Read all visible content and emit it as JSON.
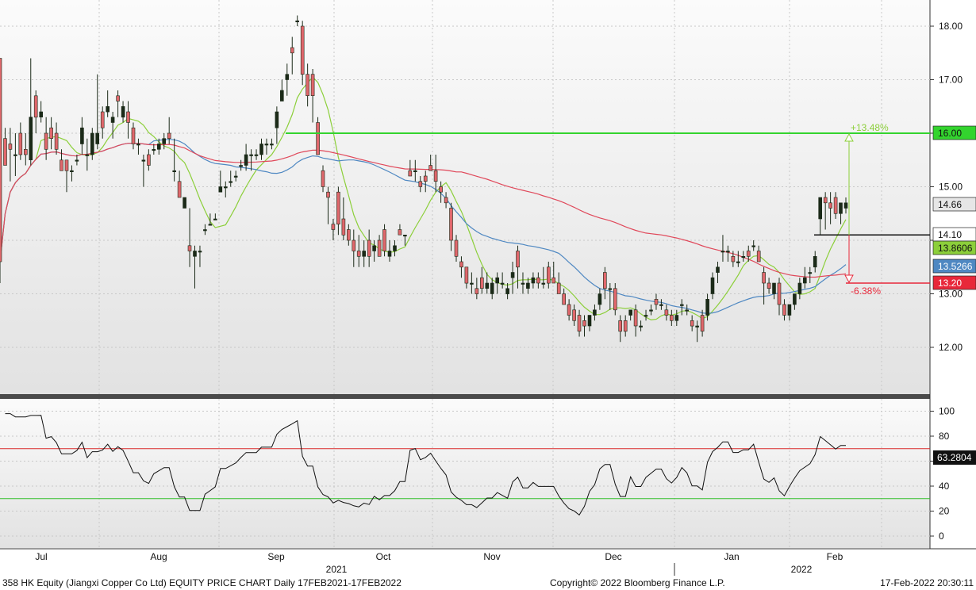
{
  "colors": {
    "up": "#1b2a18",
    "down": "#e0676c",
    "ma_short": "#8ccf3a",
    "ma_mid": "#4f88c2",
    "ma_long": "#e0485a",
    "target_line": "#33d42e",
    "stop_line": "#e8283a",
    "current_line": "#111111",
    "rsi": "#111111",
    "rsi_upper": "#d92a2a",
    "rsi_lower": "#33c02a",
    "grid": "#c8c8c8",
    "panel_bg_top": "#f7f7f7",
    "panel_bg_bottom": "#dcdcdc"
  },
  "footer": {
    "left": "358 HK Equity (Jiangxi Copper Co Ltd) EQUITY PRICE CHART  Daily 17FEB2021-17FEB2022",
    "center": "Copyright© 2022 Bloomberg Finance L.P.",
    "right": "17-Feb-2022 20:30:11"
  },
  "chart_data": [
    {
      "type": "candlestick",
      "title": "",
      "ylim": [
        11.0,
        18.5
      ],
      "yticks": [
        "18.00",
        "17.00",
        "16.00",
        "15.00",
        "14.00",
        "13.00",
        "12.00"
      ],
      "x_months": [
        "Jul",
        "Aug",
        "Sep",
        "Oct",
        "Nov",
        "Dec",
        "Jan",
        "Feb"
      ],
      "x_years": [
        "2021",
        "2022"
      ],
      "grid": true,
      "ohlc": [
        [
          17.4,
          17.4,
          13.2,
          13.6
        ],
        [
          15.9,
          16.1,
          15.4,
          15.4
        ],
        [
          15.8,
          16.1,
          15.1,
          15.7
        ],
        [
          15.6,
          16.0,
          15.2,
          15.6
        ],
        [
          16.0,
          16.2,
          15.5,
          15.6
        ],
        [
          15.7,
          16.0,
          15.4,
          15.6
        ],
        [
          15.5,
          17.4,
          15.4,
          16.3
        ],
        [
          16.7,
          16.8,
          16.0,
          16.3
        ],
        [
          16.3,
          16.6,
          16.2,
          16.4
        ],
        [
          16.0,
          16.3,
          15.5,
          15.7
        ],
        [
          16.1,
          16.3,
          15.7,
          15.9
        ],
        [
          16.0,
          16.2,
          15.6,
          15.7
        ],
        [
          15.5,
          15.7,
          15.3,
          15.3
        ],
        [
          15.5,
          15.5,
          14.9,
          15.3
        ],
        [
          15.3,
          15.4,
          15.1,
          15.3
        ],
        [
          15.5,
          15.6,
          15.4,
          15.5
        ],
        [
          15.8,
          16.3,
          15.6,
          16.1
        ],
        [
          15.6,
          15.9,
          15.3,
          15.6
        ],
        [
          15.6,
          16.1,
          15.5,
          16.0
        ],
        [
          15.8,
          17.1,
          15.7,
          16.0
        ],
        [
          16.4,
          16.5,
          15.9,
          16.1
        ],
        [
          16.4,
          16.8,
          16.3,
          16.5
        ],
        [
          16.2,
          16.4,
          15.9,
          16.3
        ],
        [
          16.7,
          16.8,
          16.3,
          16.6
        ],
        [
          16.3,
          16.6,
          16.2,
          16.5
        ],
        [
          16.4,
          16.6,
          15.9,
          16.2
        ],
        [
          16.1,
          16.2,
          15.7,
          15.8
        ],
        [
          15.8,
          15.9,
          15.6,
          15.8
        ],
        [
          15.5,
          15.6,
          15.0,
          15.5
        ],
        [
          15.6,
          15.7,
          15.3,
          15.4
        ],
        [
          15.7,
          15.8,
          15.6,
          15.7
        ],
        [
          15.7,
          15.9,
          15.6,
          15.8
        ],
        [
          15.8,
          16.0,
          15.7,
          15.9
        ],
        [
          16.0,
          16.3,
          15.8,
          15.9
        ],
        [
          15.3,
          15.9,
          15.1,
          15.3
        ],
        [
          15.1,
          15.3,
          14.8,
          14.8
        ],
        [
          14.6,
          14.8,
          14.6,
          14.8
        ],
        [
          13.9,
          14.6,
          13.5,
          13.8
        ],
        [
          13.7,
          13.9,
          13.1,
          13.8
        ],
        [
          13.8,
          13.9,
          13.5,
          13.8
        ],
        [
          14.2,
          14.3,
          14.1,
          14.2
        ],
        [
          14.3,
          14.5,
          14.3,
          14.3
        ],
        [
          14.4,
          14.5,
          14.4,
          14.4
        ],
        [
          14.9,
          15.3,
          14.9,
          15.0
        ],
        [
          15.0,
          15.1,
          14.8,
          15.0
        ],
        [
          15.1,
          15.3,
          15.0,
          15.1
        ],
        [
          15.2,
          15.3,
          15.1,
          15.2
        ],
        [
          15.4,
          15.5,
          15.3,
          15.4
        ],
        [
          15.4,
          15.8,
          15.3,
          15.6
        ],
        [
          15.6,
          15.7,
          15.3,
          15.6
        ],
        [
          15.6,
          15.7,
          15.5,
          15.6
        ],
        [
          15.6,
          15.9,
          15.5,
          15.8
        ],
        [
          15.8,
          15.9,
          15.6,
          15.8
        ],
        [
          15.8,
          15.9,
          15.7,
          15.8
        ],
        [
          16.1,
          16.5,
          15.8,
          16.4
        ],
        [
          16.6,
          17.0,
          16.6,
          16.8
        ],
        [
          17.0,
          17.3,
          16.7,
          17.1
        ],
        [
          17.6,
          17.8,
          17.1,
          17.5
        ],
        [
          18.1,
          18.2,
          18.0,
          18.1
        ],
        [
          18.0,
          18.1,
          16.9,
          17.1
        ],
        [
          17.1,
          17.3,
          16.5,
          16.7
        ],
        [
          17.1,
          17.2,
          16.2,
          16.7
        ],
        [
          16.2,
          16.3,
          15.6,
          15.6
        ],
        [
          15.3,
          15.4,
          14.9,
          15.0
        ],
        [
          14.9,
          15.0,
          14.3,
          14.8
        ],
        [
          14.3,
          14.4,
          14.0,
          14.2
        ],
        [
          14.9,
          15.0,
          14.1,
          14.3
        ],
        [
          14.4,
          14.8,
          14.0,
          14.1
        ],
        [
          14.2,
          14.3,
          13.9,
          14.0
        ],
        [
          14.0,
          14.2,
          13.5,
          13.8
        ],
        [
          13.8,
          14.1,
          13.5,
          13.7
        ],
        [
          13.7,
          14.0,
          13.5,
          13.8
        ],
        [
          14.0,
          14.2,
          13.5,
          13.7
        ],
        [
          13.8,
          14.0,
          13.6,
          13.9
        ],
        [
          14.0,
          14.1,
          13.7,
          13.7
        ],
        [
          14.2,
          14.3,
          13.7,
          13.8
        ],
        [
          13.7,
          14.0,
          13.6,
          13.8
        ],
        [
          13.8,
          14.0,
          13.7,
          13.9
        ],
        [
          14.2,
          14.3,
          14.1,
          14.1
        ],
        [
          14.1,
          14.1,
          13.9,
          14.1
        ],
        [
          15.3,
          15.5,
          15.2,
          15.2
        ],
        [
          15.3,
          15.5,
          15.1,
          15.3
        ],
        [
          15.1,
          15.2,
          14.9,
          15.0
        ],
        [
          15.2,
          15.3,
          14.9,
          15.1
        ],
        [
          15.4,
          15.6,
          15.3,
          15.3
        ],
        [
          15.3,
          15.6,
          14.9,
          15.1
        ],
        [
          15.0,
          15.1,
          14.7,
          14.9
        ],
        [
          14.8,
          14.9,
          14.6,
          14.7
        ],
        [
          14.6,
          14.7,
          13.8,
          14.0
        ],
        [
          14.0,
          14.1,
          13.6,
          13.7
        ],
        [
          13.6,
          13.7,
          13.3,
          13.5
        ],
        [
          13.5,
          13.5,
          13.1,
          13.2
        ],
        [
          13.2,
          13.4,
          13.0,
          13.2
        ],
        [
          13.1,
          13.3,
          12.9,
          13.0
        ],
        [
          13.3,
          13.5,
          13.0,
          13.1
        ],
        [
          13.1,
          13.4,
          13.0,
          13.2
        ],
        [
          13.0,
          13.3,
          12.9,
          13.2
        ],
        [
          13.2,
          13.4,
          13.0,
          13.3
        ],
        [
          13.2,
          13.4,
          13.1,
          13.2
        ],
        [
          13.0,
          13.2,
          12.9,
          13.1
        ],
        [
          13.3,
          13.6,
          13.0,
          13.4
        ],
        [
          13.8,
          13.9,
          13.1,
          13.5
        ],
        [
          13.2,
          13.4,
          13.0,
          13.2
        ],
        [
          13.1,
          13.3,
          13.0,
          13.2
        ],
        [
          13.2,
          13.4,
          13.1,
          13.3
        ],
        [
          13.3,
          13.4,
          13.1,
          13.2
        ],
        [
          13.2,
          13.5,
          13.1,
          13.2
        ],
        [
          13.5,
          13.6,
          13.1,
          13.2
        ],
        [
          13.3,
          13.6,
          13.2,
          13.2
        ],
        [
          13.2,
          13.4,
          13.0,
          13.0
        ],
        [
          13.0,
          13.1,
          12.8,
          12.8
        ],
        [
          12.8,
          12.9,
          12.5,
          12.6
        ],
        [
          12.7,
          12.8,
          12.4,
          12.5
        ],
        [
          12.6,
          12.7,
          12.2,
          12.3
        ],
        [
          12.5,
          12.6,
          12.2,
          12.4
        ],
        [
          12.4,
          12.6,
          12.3,
          12.6
        ],
        [
          12.6,
          12.8,
          12.5,
          12.7
        ],
        [
          12.8,
          13.1,
          12.7,
          13.0
        ],
        [
          13.4,
          13.5,
          12.9,
          13.1
        ],
        [
          13.1,
          13.2,
          12.7,
          13.1
        ],
        [
          13.1,
          13.2,
          12.6,
          12.7
        ],
        [
          12.5,
          12.6,
          12.1,
          12.3
        ],
        [
          12.5,
          12.6,
          12.2,
          12.3
        ],
        [
          12.6,
          12.7,
          12.5,
          12.7
        ],
        [
          12.7,
          12.8,
          12.2,
          12.4
        ],
        [
          12.4,
          12.5,
          12.3,
          12.4
        ],
        [
          12.6,
          12.7,
          12.5,
          12.6
        ],
        [
          12.7,
          12.8,
          12.6,
          12.7
        ],
        [
          12.9,
          13.0,
          12.7,
          12.8
        ],
        [
          12.8,
          12.9,
          12.7,
          12.8
        ],
        [
          12.7,
          12.8,
          12.5,
          12.6
        ],
        [
          12.6,
          12.7,
          12.4,
          12.5
        ],
        [
          12.5,
          12.7,
          12.4,
          12.6
        ],
        [
          12.8,
          12.9,
          12.6,
          12.8
        ],
        [
          12.7,
          12.8,
          12.6,
          12.7
        ],
        [
          12.5,
          12.6,
          12.3,
          12.4
        ],
        [
          12.4,
          12.5,
          12.1,
          12.4
        ],
        [
          12.6,
          12.7,
          12.2,
          12.3
        ],
        [
          12.6,
          13.0,
          12.5,
          12.9
        ],
        [
          13.0,
          13.4,
          12.9,
          13.3
        ],
        [
          13.4,
          13.6,
          13.2,
          13.5
        ],
        [
          13.8,
          14.1,
          13.6,
          13.8
        ],
        [
          13.8,
          13.9,
          13.6,
          13.8
        ],
        [
          13.7,
          13.8,
          13.5,
          13.6
        ],
        [
          13.6,
          13.8,
          13.5,
          13.6
        ],
        [
          13.7,
          13.8,
          13.6,
          13.7
        ],
        [
          13.8,
          13.9,
          13.6,
          13.7
        ],
        [
          13.9,
          14.0,
          13.8,
          13.9
        ],
        [
          13.8,
          13.9,
          13.6,
          13.6
        ],
        [
          13.4,
          13.5,
          12.8,
          13.2
        ],
        [
          13.2,
          13.3,
          13.0,
          13.1
        ],
        [
          13.0,
          13.2,
          12.9,
          13.2
        ],
        [
          13.2,
          13.3,
          12.6,
          12.8
        ],
        [
          12.8,
          12.9,
          12.5,
          12.6
        ],
        [
          12.6,
          12.8,
          12.5,
          12.8
        ],
        [
          12.8,
          13.0,
          12.7,
          13.0
        ],
        [
          13.0,
          13.3,
          12.9,
          13.2
        ],
        [
          13.2,
          13.5,
          13.1,
          13.3
        ],
        [
          13.4,
          13.5,
          13.2,
          13.4
        ],
        [
          13.5,
          13.8,
          13.4,
          13.7
        ],
        [
          14.4,
          14.8,
          14.1,
          14.8
        ],
        [
          14.8,
          14.9,
          14.2,
          14.7
        ],
        [
          14.7,
          14.9,
          14.3,
          14.6
        ],
        [
          14.8,
          14.9,
          14.4,
          14.5
        ],
        [
          14.5,
          14.7,
          14.3,
          14.7
        ],
        [
          14.6,
          14.8,
          14.5,
          14.7
        ]
      ],
      "series": [
        {
          "values": [],
          "color": "#8ccf3a"
        },
        {
          "values": [],
          "color": "#4f88c2"
        },
        {
          "values": [],
          "color": "#e0485a"
        }
      ],
      "levels": {
        "target": "16.00",
        "current": "14.10",
        "stop": "13.20",
        "target_pct": "+13.48%",
        "stop_pct": "-6.38%"
      },
      "value_tags": [
        {
          "label": "16.00",
          "bg": "#33d42e",
          "fg": "#111111"
        },
        {
          "label": "14.66",
          "bg": "#e6e6e6",
          "fg": "#111111"
        },
        {
          "label": "14.10",
          "bg": "#ffffff",
          "fg": "#111111"
        },
        {
          "label": "13.8606",
          "bg": "#8ccf3a",
          "fg": "#111111"
        },
        {
          "label": "13.5266",
          "bg": "#4f88c2",
          "fg": "#ffffff"
        },
        {
          "label": "13.20",
          "bg": "#e8283a",
          "fg": "#ffffff"
        }
      ]
    },
    {
      "type": "line",
      "title": "",
      "ylim": [
        -8,
        108
      ],
      "yticks": [
        "100",
        "80",
        "60",
        "40",
        "20",
        "0"
      ],
      "levels": [
        70,
        30
      ],
      "value_tag": {
        "label": "63.2804",
        "bg": "#111111",
        "fg": "#ffffff"
      }
    }
  ]
}
